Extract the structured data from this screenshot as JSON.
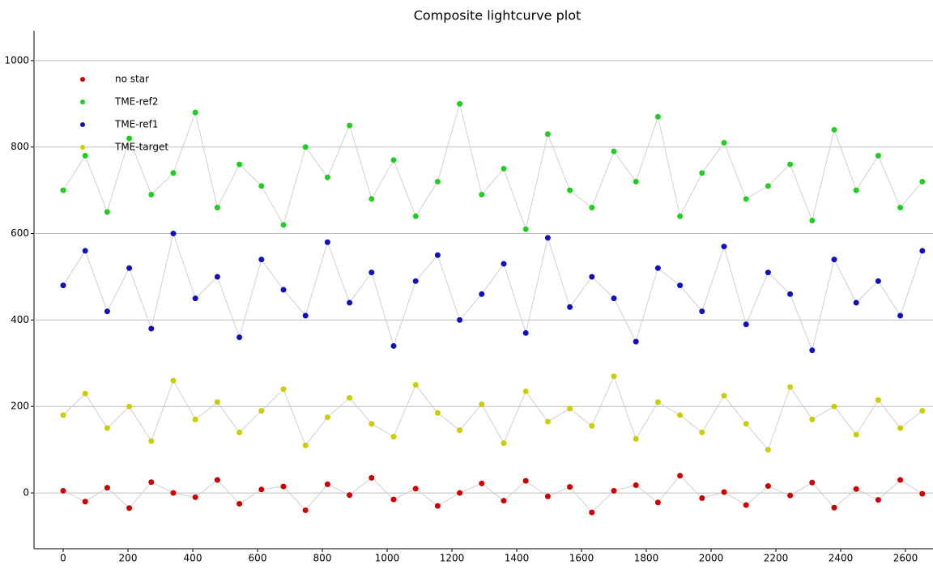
{
  "chart_data": {
    "type": "scatter",
    "title": "Composite lightcurve plot",
    "x": [
      0,
      68,
      136,
      204,
      272,
      340,
      408,
      476,
      544,
      612,
      680,
      748,
      816,
      884,
      952,
      1020,
      1088,
      1156,
      1224,
      1292,
      1360,
      1428,
      1496,
      1564,
      1632,
      1700,
      1768,
      1836,
      1904,
      1972,
      2040,
      2108,
      2176,
      2244,
      2312,
      2380,
      2448,
      2516,
      2584,
      2652
    ],
    "series": [
      {
        "name": "no star",
        "color": "#cc0000",
        "values": [
          5,
          -20,
          12,
          -35,
          25,
          0,
          -10,
          30,
          -25,
          8,
          15,
          -40,
          20,
          -5,
          35,
          -15,
          10,
          -30,
          0,
          22,
          -18,
          28,
          -8,
          14,
          -45,
          5,
          18,
          -22,
          40,
          -12,
          2,
          -28,
          16,
          -6,
          24,
          -34,
          9,
          -16,
          30,
          -2
        ]
      },
      {
        "name": "TME-ref2",
        "color": "#22cc22",
        "values": [
          700,
          780,
          650,
          820,
          690,
          740,
          880,
          660,
          760,
          710,
          620,
          800,
          730,
          850,
          680,
          770,
          640,
          720,
          900,
          690,
          750,
          610,
          830,
          700,
          660,
          790,
          720,
          870,
          640,
          740,
          810,
          680,
          710,
          760,
          630,
          840,
          700,
          780,
          660,
          720
        ]
      },
      {
        "name": "TME-ref1",
        "color": "#1111bb",
        "values": [
          480,
          560,
          420,
          520,
          380,
          600,
          450,
          500,
          360,
          540,
          470,
          410,
          580,
          440,
          510,
          340,
          490,
          550,
          400,
          460,
          530,
          370,
          590,
          430,
          500,
          450,
          350,
          520,
          480,
          420,
          570,
          390,
          510,
          460,
          330,
          540,
          440,
          490,
          410,
          560
        ]
      },
      {
        "name": "TME-target",
        "color": "#cccc00",
        "values": [
          180,
          230,
          150,
          200,
          120,
          260,
          170,
          210,
          140,
          190,
          240,
          110,
          175,
          220,
          160,
          130,
          250,
          185,
          145,
          205,
          115,
          235,
          165,
          195,
          155,
          270,
          125,
          210,
          180,
          140,
          225,
          160,
          100,
          245,
          170,
          200,
          135,
          215,
          150,
          190
        ]
      }
    ],
    "xlim": [
      -90,
      2685
    ],
    "ylim": [
      -129,
      1069
    ],
    "xticks": [
      0,
      200,
      400,
      600,
      800,
      1000,
      1200,
      1400,
      1600,
      1800,
      2000,
      2200,
      2400,
      2600
    ],
    "yticks": [
      0,
      200,
      400,
      600,
      800,
      1000
    ],
    "grid": true,
    "legend": "upper-left"
  }
}
